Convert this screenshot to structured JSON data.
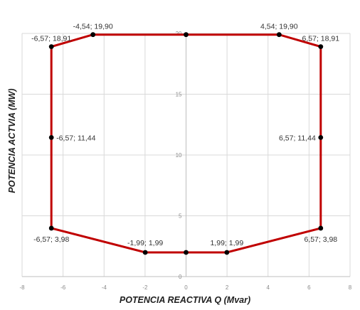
{
  "chart_data": {
    "type": "scatter",
    "xlabel": "POTENCIA REACTIVA Q (Mvar)",
    "ylabel": "POTENCIA ACTVIA (MW)",
    "xlim": [
      -8,
      8
    ],
    "ylim": [
      0,
      20
    ],
    "xticks": [
      "-8",
      "-6",
      "-4",
      "-2",
      "0",
      "2",
      "4",
      "6",
      "8"
    ],
    "yticks": [
      "0",
      "5",
      "10",
      "15",
      "20"
    ],
    "grid": true,
    "line_color": "#c00000",
    "marker_color": "#000000",
    "points": [
      {
        "x": 0,
        "y": 19.9
      },
      {
        "x": 4.54,
        "y": 19.9,
        "label": "4,54; 19,90"
      },
      {
        "x": 6.57,
        "y": 18.91,
        "label": "6,57; 18,91"
      },
      {
        "x": 6.57,
        "y": 11.44,
        "label": "6,57; 11,44"
      },
      {
        "x": 6.57,
        "y": 3.98,
        "label": "6,57; 3,98"
      },
      {
        "x": 1.99,
        "y": 1.99,
        "label": "1,99; 1,99"
      },
      {
        "x": 0,
        "y": 1.99
      },
      {
        "x": -1.99,
        "y": 1.99,
        "label": "-1,99; 1,99"
      },
      {
        "x": -6.57,
        "y": 3.98,
        "label": "-6,57; 3,98"
      },
      {
        "x": -6.57,
        "y": 11.44,
        "label": "-6,57; 11,44"
      },
      {
        "x": -6.57,
        "y": 18.91,
        "label": "-6,57; 18,91"
      },
      {
        "x": -4.54,
        "y": 19.9,
        "label": "-4,54; 19,90"
      }
    ]
  }
}
